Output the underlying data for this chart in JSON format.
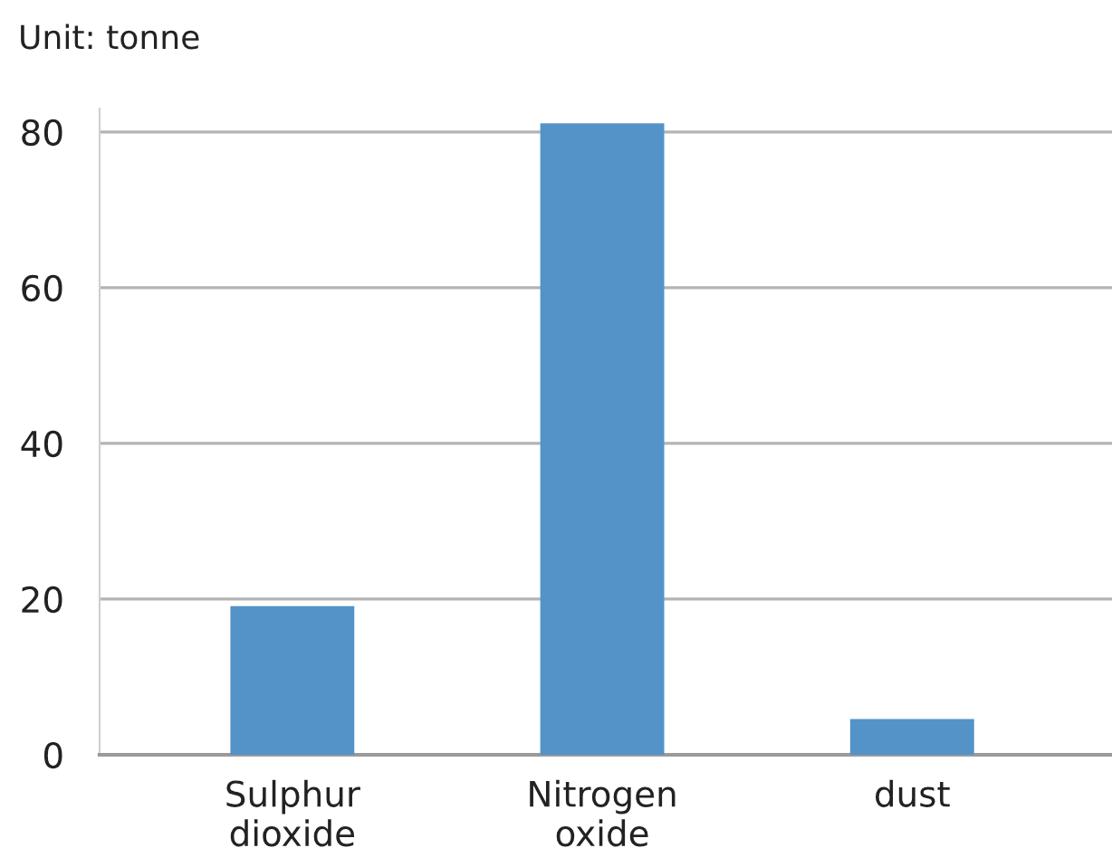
{
  "chart_data": {
    "type": "bar",
    "ylabel": "Unit: tonne",
    "categories": [
      "Sulphur\ndioxide",
      "Nitrogen\noxide",
      "dust"
    ],
    "values": [
      19.1,
      81.1,
      4.6
    ],
    "color": "#5393c8",
    "ylim": [
      0,
      83
    ],
    "yticks": [
      0,
      20,
      40,
      60,
      80
    ],
    "grid": "y"
  }
}
